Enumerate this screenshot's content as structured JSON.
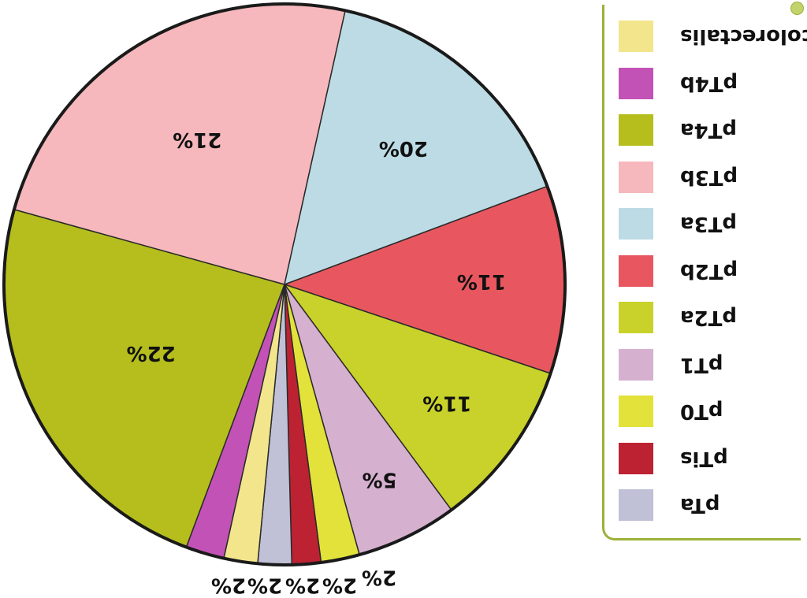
{
  "chart_data": {
    "type": "pie",
    "title": "",
    "legend_placement": "right",
    "series": [
      {
        "name": "colorectalis",
        "value": 2,
        "label": "2%",
        "color": "#f2e58c"
      },
      {
        "name": "pT4b",
        "value": 2,
        "label": "2%",
        "color": "#c352b6"
      },
      {
        "name": "pT4a",
        "value": 22,
        "label": "22%",
        "color": "#b5be1d"
      },
      {
        "name": "pT3b",
        "value": 21,
        "label": "21%",
        "color": "#f6b8bc"
      },
      {
        "name": "pT3a",
        "value": 20,
        "label": "20%",
        "color": "#bcdbe5"
      },
      {
        "name": "pT2b",
        "value": 11,
        "label": "11%",
        "color": "#e8575f"
      },
      {
        "name": "pT2a",
        "value": 11,
        "label": "11%",
        "color": "#c8d22a"
      },
      {
        "name": "pT1",
        "value": 5,
        "label": "5%",
        "color": "#d6b0cf"
      },
      {
        "name": "pT0",
        "value": 2,
        "label": "2%",
        "color": "#e2e23a"
      },
      {
        "name": "pTis",
        "value": 2,
        "label": "2%",
        "color": "#bd2232"
      },
      {
        "name": "pTa",
        "value": 2,
        "label": "2%",
        "color": "#c0c0d6"
      }
    ]
  }
}
